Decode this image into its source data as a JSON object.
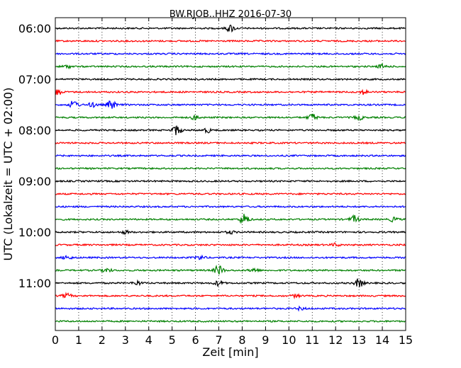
{
  "chart_data": {
    "type": "line",
    "title": "BW.RJOB..HHZ 2016-07-30",
    "xlabel": "Zeit  [min]",
    "ylabel": "UTC (Lokalzeit = UTC + 02:00)",
    "xlim": [
      0,
      15
    ],
    "x_ticks": [
      "0",
      "1",
      "2",
      "3",
      "4",
      "5",
      "6",
      "7",
      "8",
      "9",
      "10",
      "11",
      "12",
      "13",
      "14",
      "15"
    ],
    "y_tick_labels": [
      "06:00",
      "07:00",
      "08:00",
      "09:00",
      "10:00",
      "11:00"
    ],
    "grid": "dotted vertical",
    "trace_colors": [
      "#000000",
      "#ff0000",
      "#0000ff",
      "#008000"
    ],
    "traces": [
      {
        "start": "06:00",
        "events": [
          [
            7.5,
            5
          ]
        ]
      },
      {
        "start": "06:15",
        "events": []
      },
      {
        "start": "06:30",
        "events": []
      },
      {
        "start": "06:45",
        "events": [
          [
            0.5,
            2
          ],
          [
            14.0,
            3
          ]
        ]
      },
      {
        "start": "07:00",
        "events": []
      },
      {
        "start": "07:15",
        "events": [
          [
            0.1,
            4
          ],
          [
            13.2,
            3
          ]
        ]
      },
      {
        "start": "07:30",
        "events": [
          [
            0.8,
            6
          ],
          [
            2.4,
            6
          ],
          [
            1.6,
            3
          ]
        ]
      },
      {
        "start": "07:45",
        "events": [
          [
            6.0,
            3
          ],
          [
            11.0,
            5
          ],
          [
            13.0,
            3
          ]
        ]
      },
      {
        "start": "08:00",
        "events": [
          [
            5.2,
            7
          ],
          [
            6.5,
            3
          ]
        ]
      },
      {
        "start": "08:15",
        "events": []
      },
      {
        "start": "08:30",
        "events": []
      },
      {
        "start": "08:45",
        "events": []
      },
      {
        "start": "09:00",
        "events": []
      },
      {
        "start": "09:15",
        "events": []
      },
      {
        "start": "09:30",
        "events": []
      },
      {
        "start": "09:45",
        "events": [
          [
            8.1,
            8
          ],
          [
            12.8,
            5
          ],
          [
            14.5,
            3
          ]
        ]
      },
      {
        "start": "10:00",
        "events": [
          [
            3.0,
            2
          ],
          [
            7.5,
            2
          ]
        ]
      },
      {
        "start": "10:15",
        "events": [
          [
            12.0,
            2
          ]
        ]
      },
      {
        "start": "10:30",
        "events": [
          [
            0.5,
            3
          ],
          [
            6.2,
            3
          ]
        ]
      },
      {
        "start": "10:45",
        "events": [
          [
            2.2,
            3
          ],
          [
            7.0,
            7
          ],
          [
            8.5,
            3
          ]
        ]
      },
      {
        "start": "11:00",
        "events": [
          [
            3.5,
            3
          ],
          [
            7.0,
            4
          ],
          [
            13.0,
            6
          ]
        ]
      },
      {
        "start": "11:15",
        "events": [
          [
            0.5,
            3
          ],
          [
            10.3,
            2
          ]
        ]
      },
      {
        "start": "11:30",
        "events": [
          [
            10.5,
            2
          ]
        ]
      },
      {
        "start": "11:45",
        "events": []
      }
    ]
  }
}
